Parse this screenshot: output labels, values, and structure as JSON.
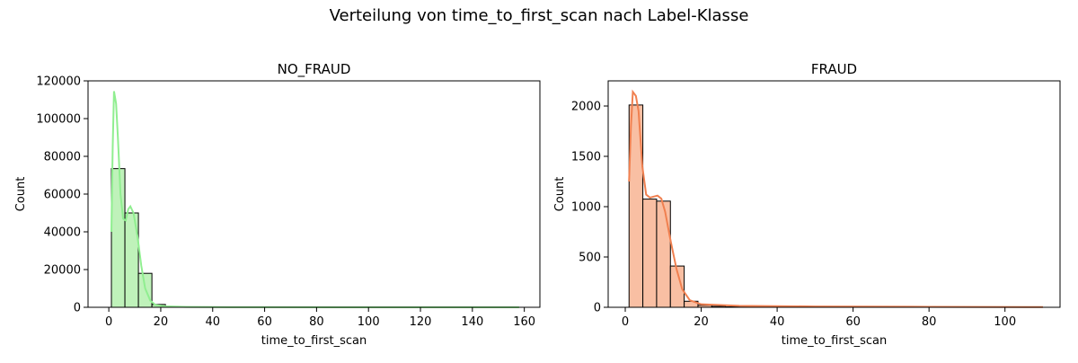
{
  "figure": {
    "suptitle": "Verteilung von time_to_first_scan nach Label-Klasse"
  },
  "chart_data": [
    {
      "type": "histogram",
      "title": "NO_FRAUD",
      "xlabel": "time_to_first_scan",
      "ylabel": "Count",
      "xlim": [
        -8,
        166
      ],
      "ylim": [
        0,
        120000
      ],
      "xticks": [
        0,
        20,
        40,
        60,
        80,
        100,
        120,
        140,
        160
      ],
      "yticks": [
        0,
        20000,
        40000,
        60000,
        80000,
        100000,
        120000
      ],
      "bin_width": 5.2,
      "bins": [
        {
          "start": 1.0,
          "count": 73500
        },
        {
          "start": 6.2,
          "count": 50000
        },
        {
          "start": 11.4,
          "count": 18000
        },
        {
          "start": 16.6,
          "count": 1500
        },
        {
          "start": 21.8,
          "count": 400
        },
        {
          "start": 27.0,
          "count": 200
        },
        {
          "start": 32.2,
          "count": 100
        },
        {
          "start": 37.4,
          "count": 50
        },
        {
          "start": 42.6,
          "count": 30
        },
        {
          "start": 47.8,
          "count": 20
        }
      ],
      "kde": [
        [
          1.0,
          40000
        ],
        [
          1.5,
          85000
        ],
        [
          2.0,
          114500
        ],
        [
          2.8,
          108000
        ],
        [
          3.5,
          90000
        ],
        [
          4.5,
          60000
        ],
        [
          5.5,
          47000
        ],
        [
          6.5,
          46000
        ],
        [
          7.5,
          52000
        ],
        [
          8.3,
          53500
        ],
        [
          9.5,
          50000
        ],
        [
          11.0,
          38000
        ],
        [
          12.5,
          22000
        ],
        [
          14.0,
          10000
        ],
        [
          16.0,
          3500
        ],
        [
          18.0,
          1200
        ],
        [
          22.0,
          500
        ],
        [
          30.0,
          200
        ],
        [
          40.0,
          100
        ],
        [
          60.0,
          40
        ],
        [
          100.0,
          10
        ],
        [
          158.0,
          0
        ]
      ],
      "colors": {
        "fill": "#bff2ba",
        "edge": "#000000",
        "line": "#90ee90"
      }
    },
    {
      "type": "histogram",
      "title": "FRAUD",
      "xlabel": "time_to_first_scan",
      "ylabel": "Count",
      "xlim": [
        -4.5,
        114.5
      ],
      "ylim": [
        0,
        2250
      ],
      "xticks": [
        0,
        20,
        40,
        60,
        80,
        100
      ],
      "yticks": [
        0,
        500,
        1000,
        1500,
        2000
      ],
      "bin_width": 3.63,
      "bins": [
        {
          "start": 1.0,
          "count": 2010
        },
        {
          "start": 4.63,
          "count": 1075
        },
        {
          "start": 8.26,
          "count": 1055
        },
        {
          "start": 11.89,
          "count": 410
        },
        {
          "start": 15.52,
          "count": 60
        },
        {
          "start": 19.15,
          "count": 20
        },
        {
          "start": 22.78,
          "count": 10
        },
        {
          "start": 26.41,
          "count": 5
        },
        {
          "start": 30.04,
          "count": 3
        },
        {
          "start": 33.67,
          "count": 2
        }
      ],
      "kde": [
        [
          1.0,
          1250
        ],
        [
          1.5,
          1800
        ],
        [
          2.0,
          2140
        ],
        [
          2.8,
          2100
        ],
        [
          3.5,
          1950
        ],
        [
          4.5,
          1400
        ],
        [
          5.5,
          1120
        ],
        [
          6.5,
          1090
        ],
        [
          7.5,
          1100
        ],
        [
          8.5,
          1110
        ],
        [
          9.5,
          1080
        ],
        [
          10.5,
          950
        ],
        [
          12.0,
          650
        ],
        [
          13.5,
          380
        ],
        [
          15.0,
          180
        ],
        [
          17.0,
          70
        ],
        [
          20.0,
          30
        ],
        [
          30.0,
          15
        ],
        [
          50.0,
          8
        ],
        [
          80.0,
          5
        ],
        [
          110.0,
          2
        ]
      ],
      "colors": {
        "fill": "#f9bfa3",
        "edge": "#000000",
        "line": "#f08050"
      }
    }
  ]
}
